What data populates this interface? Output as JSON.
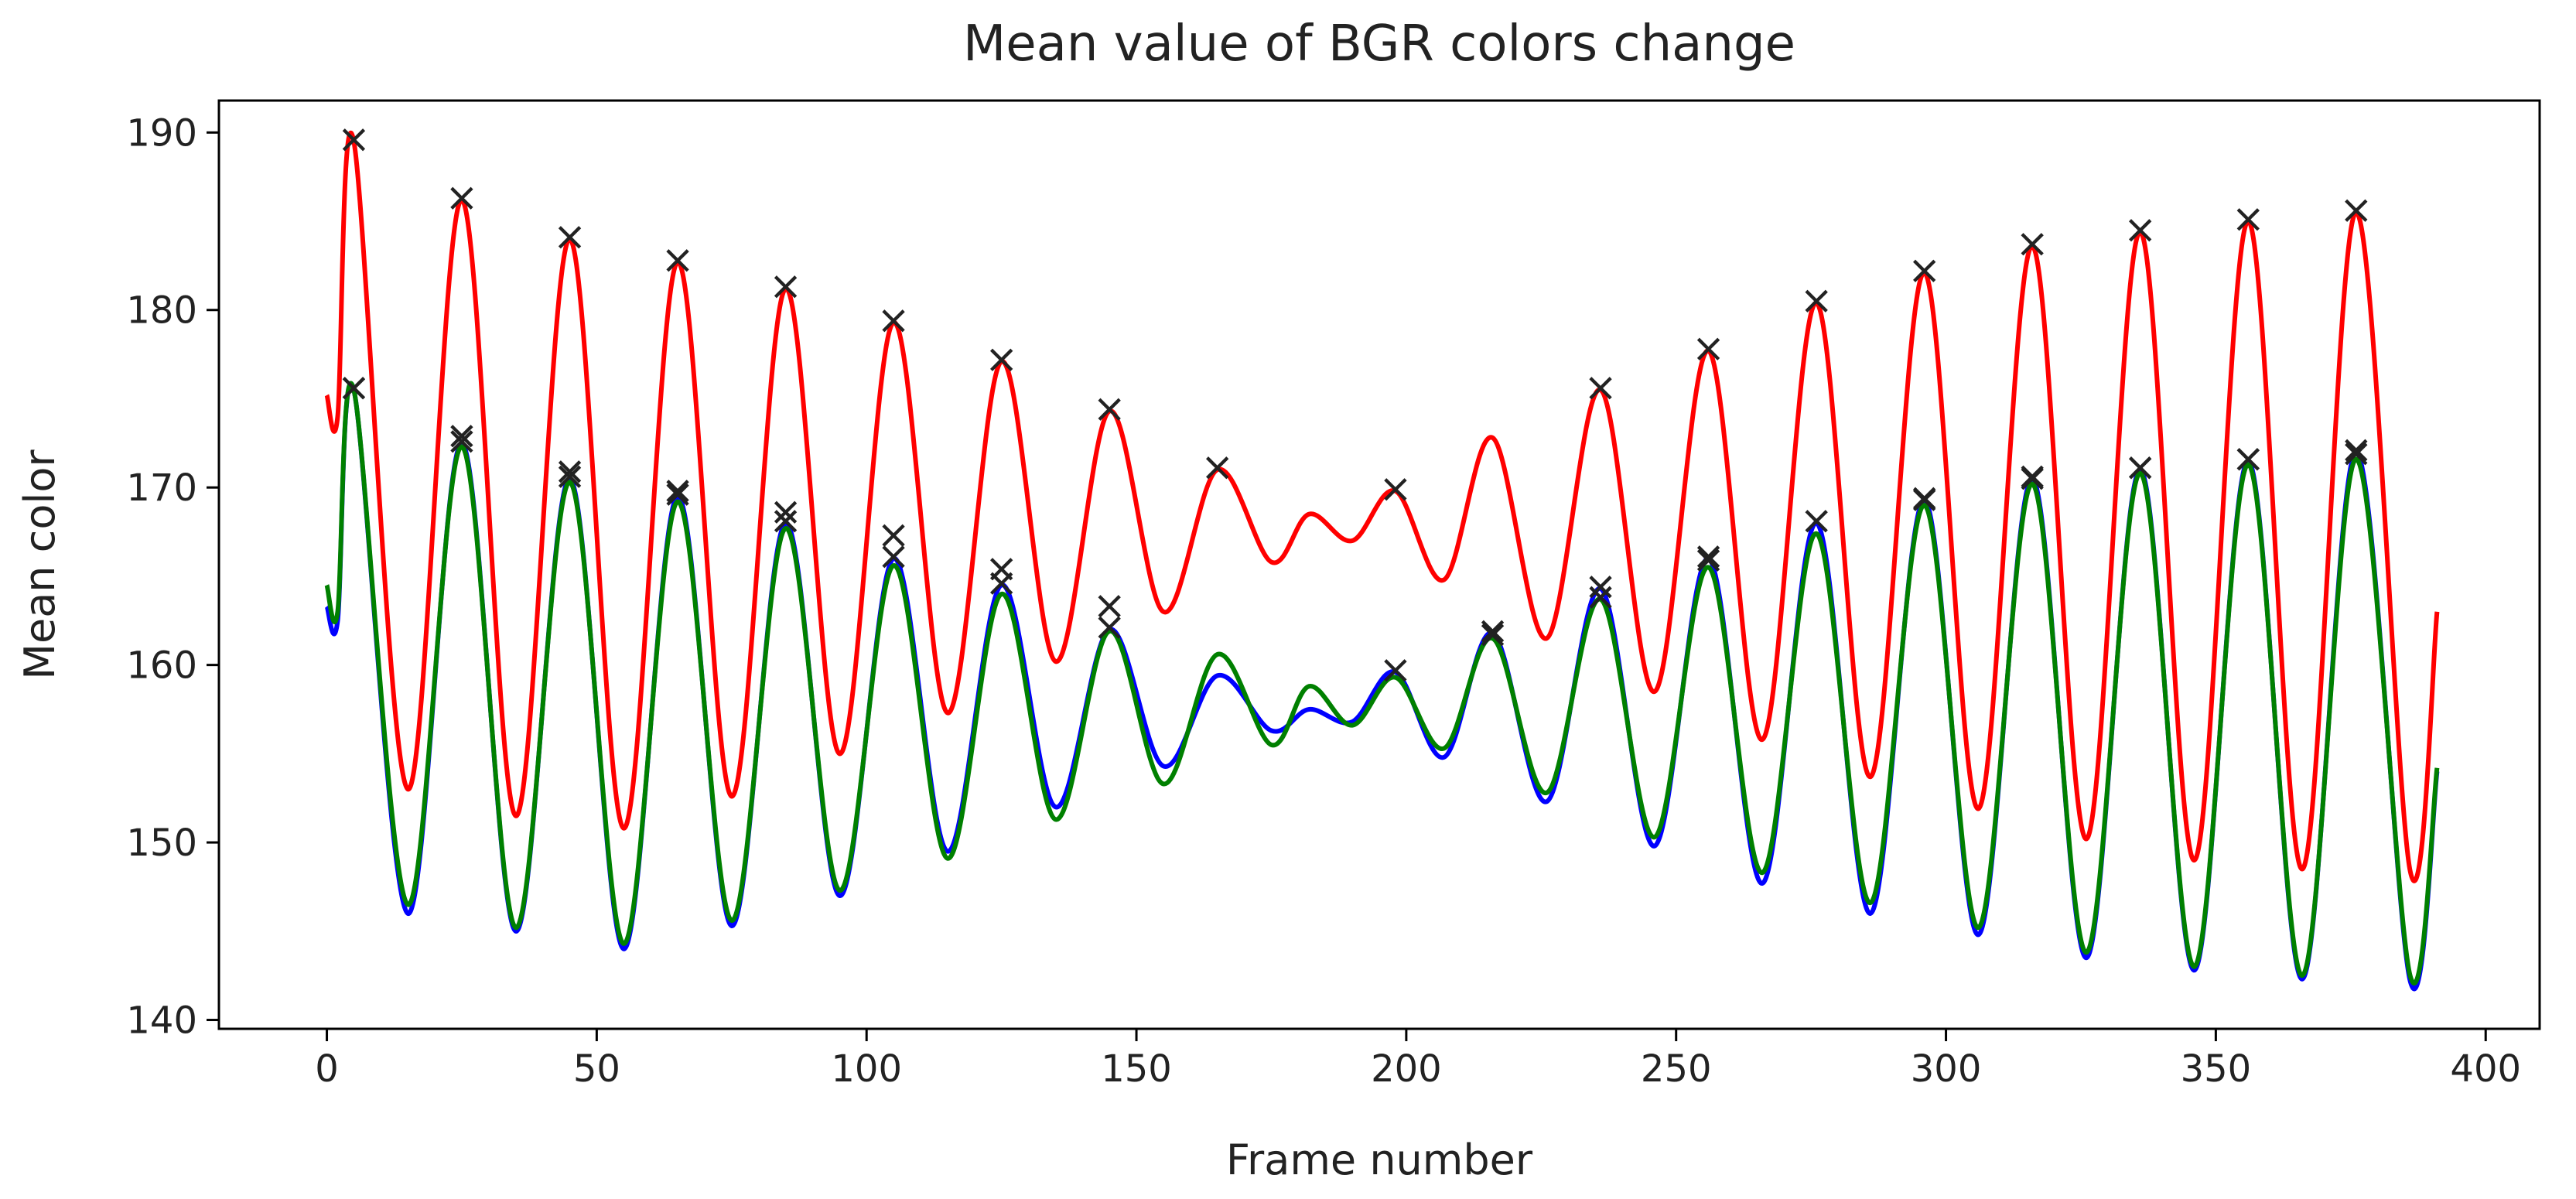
{
  "chart_data": {
    "type": "line",
    "title": "Mean value of BGR colors change",
    "xlabel": "Frame number",
    "ylabel": "Mean color",
    "xlim": [
      -20,
      410
    ],
    "ylim": [
      139.5,
      191.8
    ],
    "xticks": [
      0,
      50,
      100,
      150,
      200,
      250,
      300,
      350,
      400
    ],
    "yticks": [
      140,
      150,
      160,
      170,
      180,
      190
    ],
    "grid": false,
    "legend": "none",
    "marker_symbol": "×",
    "series": [
      {
        "color": "#0000ff",
        "points": [
          [
            0,
            163.3
          ],
          [
            2,
            162.5
          ],
          [
            5,
            175.5
          ],
          [
            15,
            146.0
          ],
          [
            25,
            172.5
          ],
          [
            35,
            145.0
          ],
          [
            45,
            170.5
          ],
          [
            55,
            144.0
          ],
          [
            65,
            169.5
          ],
          [
            75,
            145.3
          ],
          [
            85,
            168.0
          ],
          [
            95,
            147.0
          ],
          [
            105,
            166.0
          ],
          [
            115,
            149.5
          ],
          [
            125,
            164.5
          ],
          [
            135,
            152.0
          ],
          [
            145,
            162.0
          ],
          [
            155,
            154.3
          ],
          [
            165,
            159.4
          ],
          [
            175,
            156.3
          ],
          [
            182,
            157.5
          ],
          [
            190,
            156.8
          ],
          [
            198,
            159.6
          ],
          [
            207,
            154.8
          ],
          [
            216,
            161.8
          ],
          [
            226,
            152.3
          ],
          [
            236,
            164.3
          ],
          [
            246,
            149.8
          ],
          [
            256,
            166.0
          ],
          [
            266,
            147.7
          ],
          [
            276,
            168.0
          ],
          [
            286,
            146.0
          ],
          [
            296,
            169.3
          ],
          [
            306,
            144.8
          ],
          [
            316,
            170.5
          ],
          [
            326,
            143.5
          ],
          [
            336,
            171.0
          ],
          [
            346,
            142.8
          ],
          [
            356,
            171.5
          ],
          [
            366,
            142.3
          ],
          [
            376,
            172.0
          ],
          [
            386,
            142.2
          ],
          [
            391,
            154.0
          ]
        ],
        "markers": [
          [
            5,
            175.5
          ],
          [
            25,
            172.5
          ],
          [
            45,
            170.5
          ],
          [
            65,
            169.5
          ],
          [
            85,
            168.0
          ],
          [
            105,
            166.0
          ],
          [
            125,
            164.5
          ],
          [
            145,
            162.0
          ],
          [
            198,
            159.6
          ],
          [
            216,
            161.8
          ],
          [
            236,
            164.3
          ],
          [
            256,
            166.0
          ],
          [
            276,
            168.0
          ],
          [
            296,
            169.3
          ],
          [
            316,
            170.5
          ],
          [
            336,
            171.0
          ],
          [
            356,
            171.5
          ],
          [
            376,
            172.0
          ]
        ]
      },
      {
        "color": "#008000",
        "points": [
          [
            0,
            164.5
          ],
          [
            2,
            163.0
          ],
          [
            5,
            175.5
          ],
          [
            15,
            146.5
          ],
          [
            25,
            172.3
          ],
          [
            35,
            145.2
          ],
          [
            45,
            170.3
          ],
          [
            55,
            144.3
          ],
          [
            65,
            169.2
          ],
          [
            75,
            145.6
          ],
          [
            85,
            167.7
          ],
          [
            95,
            147.3
          ],
          [
            105,
            165.6
          ],
          [
            115,
            149.1
          ],
          [
            125,
            164.0
          ],
          [
            135,
            151.3
          ],
          [
            145,
            161.9
          ],
          [
            155,
            153.3
          ],
          [
            165,
            160.6
          ],
          [
            175,
            155.5
          ],
          [
            182,
            158.8
          ],
          [
            190,
            156.6
          ],
          [
            198,
            159.3
          ],
          [
            207,
            155.3
          ],
          [
            216,
            161.5
          ],
          [
            226,
            152.8
          ],
          [
            236,
            163.7
          ],
          [
            246,
            150.3
          ],
          [
            256,
            165.5
          ],
          [
            266,
            148.3
          ],
          [
            276,
            167.4
          ],
          [
            286,
            146.6
          ],
          [
            296,
            169.0
          ],
          [
            306,
            145.2
          ],
          [
            316,
            170.2
          ],
          [
            326,
            143.8
          ],
          [
            336,
            170.8
          ],
          [
            346,
            143.0
          ],
          [
            356,
            171.3
          ],
          [
            366,
            142.5
          ],
          [
            376,
            171.6
          ],
          [
            386,
            142.5
          ],
          [
            391,
            154.2
          ]
        ],
        "markers": [
          [
            5,
            189.5
          ],
          [
            25,
            186.2
          ],
          [
            45,
            184.0
          ],
          [
            65,
            182.7
          ],
          [
            85,
            181.2
          ],
          [
            105,
            179.3
          ],
          [
            125,
            177.1
          ],
          [
            145,
            174.3
          ],
          [
            165,
            171.0
          ],
          [
            198,
            169.8
          ],
          [
            236,
            175.5
          ],
          [
            256,
            177.7
          ],
          [
            276,
            180.4
          ],
          [
            296,
            182.1
          ],
          [
            316,
            183.6
          ],
          [
            336,
            184.4
          ],
          [
            356,
            185.0
          ],
          [
            376,
            185.5
          ]
        ]
      },
      {
        "color": "#ff0000",
        "points": [
          [
            0,
            175.2
          ],
          [
            2,
            174.0
          ],
          [
            5,
            189.5
          ],
          [
            15,
            153.0
          ],
          [
            25,
            186.2
          ],
          [
            35,
            151.5
          ],
          [
            45,
            184.0
          ],
          [
            55,
            150.8
          ],
          [
            65,
            182.7
          ],
          [
            75,
            152.6
          ],
          [
            85,
            181.2
          ],
          [
            95,
            155.0
          ],
          [
            105,
            179.3
          ],
          [
            115,
            157.3
          ],
          [
            125,
            177.1
          ],
          [
            135,
            160.2
          ],
          [
            145,
            174.3
          ],
          [
            155,
            163.0
          ],
          [
            165,
            171.0
          ],
          [
            175,
            165.8
          ],
          [
            182,
            168.5
          ],
          [
            190,
            167.0
          ],
          [
            198,
            169.8
          ],
          [
            207,
            164.8
          ],
          [
            216,
            172.8
          ],
          [
            226,
            161.5
          ],
          [
            236,
            175.5
          ],
          [
            246,
            158.5
          ],
          [
            256,
            177.7
          ],
          [
            266,
            155.8
          ],
          [
            276,
            180.4
          ],
          [
            286,
            153.7
          ],
          [
            296,
            182.1
          ],
          [
            306,
            151.9
          ],
          [
            316,
            183.6
          ],
          [
            326,
            150.2
          ],
          [
            336,
            184.4
          ],
          [
            346,
            149.0
          ],
          [
            356,
            185.0
          ],
          [
            366,
            148.5
          ],
          [
            376,
            185.5
          ],
          [
            386,
            148.4
          ],
          [
            391,
            163.0
          ]
        ],
        "markers": [
          [
            5,
            175.5
          ],
          [
            25,
            172.8
          ],
          [
            45,
            170.8
          ],
          [
            65,
            169.7
          ],
          [
            85,
            168.5
          ],
          [
            105,
            167.2
          ],
          [
            125,
            165.3
          ],
          [
            145,
            163.2
          ],
          [
            216,
            161.6
          ],
          [
            236,
            163.7
          ],
          [
            256,
            165.8
          ],
          [
            296,
            169.2
          ],
          [
            316,
            170.4
          ],
          [
            336,
            171.0
          ],
          [
            356,
            171.5
          ],
          [
            376,
            171.8
          ]
        ]
      }
    ]
  }
}
